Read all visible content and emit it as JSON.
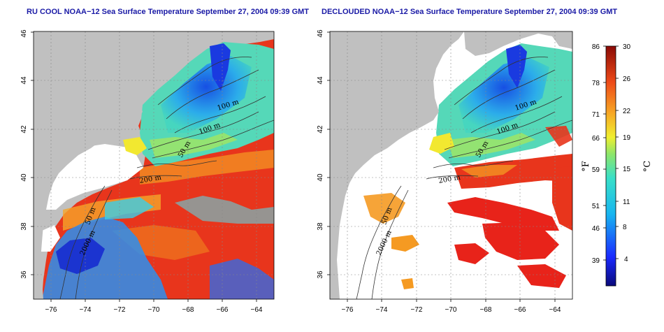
{
  "titles": {
    "left": "RU COOL NOAA−12 Sea Surface Temperature September 27, 2004 09:39 GMT",
    "right": "DECLOUDED NOAA−12 Sea Surface Temperature September 27, 2004 09:39 GMT"
  },
  "axes": {
    "lon_ticks": [
      "−76",
      "−74",
      "−72",
      "−70",
      "−68",
      "−66",
      "−64"
    ],
    "lat_ticks": [
      "36",
      "38",
      "40",
      "42",
      "44",
      "46"
    ],
    "lon_range": [
      -77,
      -63
    ],
    "lat_range": [
      35,
      46
    ]
  },
  "contour_labels": [
    "100 m",
    "100 m",
    "50 m",
    "200 m",
    "50 m",
    "2000 m"
  ],
  "colorbar": {
    "fahrenheit_ticks": [
      "86",
      "78",
      "71",
      "66",
      "59",
      "51",
      "46",
      "39"
    ],
    "celsius_ticks": [
      "30",
      "26",
      "22",
      "19",
      "15",
      "11",
      "8",
      "4"
    ],
    "fahrenheit_unit": "°F",
    "celsius_unit": "°C",
    "range_c": [
      0,
      30
    ]
  },
  "colors": {
    "land": "#c0c0c0",
    "title": "#1a1aa6",
    "cold": "#1a1aff",
    "cyan": "#3fd9e6",
    "green": "#6fdc7a",
    "yellow": "#f2ef33",
    "orange": "#f59a22",
    "red": "#e8231a"
  }
}
